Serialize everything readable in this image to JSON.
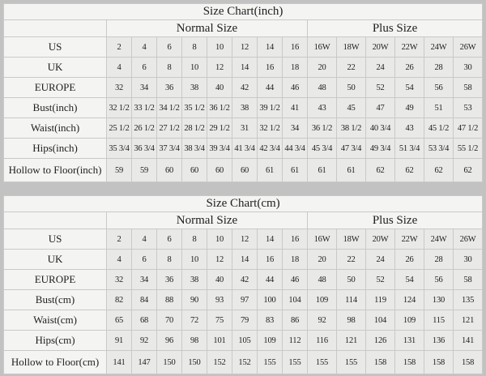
{
  "colors": {
    "page_background": "#c2c2c2",
    "table_background": "#f4f4f3",
    "data_cell_background": "#e9e9e8",
    "border": "#c9c9c8",
    "text": "#1e1e1e"
  },
  "chart_data": [
    {
      "type": "table",
      "title": "Size Chart(inch)",
      "column_groups": [
        {
          "label": "Normal Size",
          "span": 8
        },
        {
          "label": "Plus Size",
          "span": 6
        }
      ],
      "rows": [
        {
          "label": "US",
          "values": [
            "2",
            "4",
            "6",
            "8",
            "10",
            "12",
            "14",
            "16",
            "16W",
            "18W",
            "20W",
            "22W",
            "24W",
            "26W"
          ]
        },
        {
          "label": "UK",
          "values": [
            "4",
            "6",
            "8",
            "10",
            "12",
            "14",
            "16",
            "18",
            "20",
            "22",
            "24",
            "26",
            "28",
            "30"
          ]
        },
        {
          "label": "EUROPE",
          "values": [
            "32",
            "34",
            "36",
            "38",
            "40",
            "42",
            "44",
            "46",
            "48",
            "50",
            "52",
            "54",
            "56",
            "58"
          ]
        },
        {
          "label": "Bust(inch)",
          "values": [
            "32 1/2",
            "33 1/2",
            "34 1/2",
            "35 1/2",
            "36 1/2",
            "38",
            "39 1/2",
            "41",
            "43",
            "45",
            "47",
            "49",
            "51",
            "53"
          ]
        },
        {
          "label": "Waist(inch)",
          "values": [
            "25 1/2",
            "26 1/2",
            "27 1/2",
            "28 1/2",
            "29 1/2",
            "31",
            "32 1/2",
            "34",
            "36 1/2",
            "38 1/2",
            "40 3/4",
            "43",
            "45 1/2",
            "47 1/2"
          ]
        },
        {
          "label": "Hips(inch)",
          "values": [
            "35 3/4",
            "36 3/4",
            "37 3/4",
            "38 3/4",
            "39 3/4",
            "41 3/4",
            "42 3/4",
            "44 3/4",
            "45 3/4",
            "47 3/4",
            "49 3/4",
            "51 3/4",
            "53 3/4",
            "55 1/2"
          ]
        },
        {
          "label": "Hollow to Floor(inch)",
          "values": [
            "59",
            "59",
            "60",
            "60",
            "60",
            "60",
            "61",
            "61",
            "61",
            "61",
            "62",
            "62",
            "62",
            "62"
          ]
        }
      ]
    },
    {
      "type": "table",
      "title": "Size Chart(cm)",
      "column_groups": [
        {
          "label": "Normal Size",
          "span": 8
        },
        {
          "label": "Plus Size",
          "span": 6
        }
      ],
      "rows": [
        {
          "label": "US",
          "values": [
            "2",
            "4",
            "6",
            "8",
            "10",
            "12",
            "14",
            "16",
            "16W",
            "18W",
            "20W",
            "22W",
            "24W",
            "26W"
          ]
        },
        {
          "label": "UK",
          "values": [
            "4",
            "6",
            "8",
            "10",
            "12",
            "14",
            "16",
            "18",
            "20",
            "22",
            "24",
            "26",
            "28",
            "30"
          ]
        },
        {
          "label": "EUROPE",
          "values": [
            "32",
            "34",
            "36",
            "38",
            "40",
            "42",
            "44",
            "46",
            "48",
            "50",
            "52",
            "54",
            "56",
            "58"
          ]
        },
        {
          "label": "Bust(cm)",
          "values": [
            "82",
            "84",
            "88",
            "90",
            "93",
            "97",
            "100",
            "104",
            "109",
            "114",
            "119",
            "124",
            "130",
            "135"
          ]
        },
        {
          "label": "Waist(cm)",
          "values": [
            "65",
            "68",
            "70",
            "72",
            "75",
            "79",
            "83",
            "86",
            "92",
            "98",
            "104",
            "109",
            "115",
            "121"
          ]
        },
        {
          "label": "Hips(cm)",
          "values": [
            "91",
            "92",
            "96",
            "98",
            "101",
            "105",
            "109",
            "112",
            "116",
            "121",
            "126",
            "131",
            "136",
            "141"
          ]
        },
        {
          "label": "Hollow to Floor(cm)",
          "values": [
            "141",
            "147",
            "150",
            "150",
            "152",
            "152",
            "155",
            "155",
            "155",
            "155",
            "158",
            "158",
            "158",
            "158"
          ]
        }
      ]
    }
  ],
  "layout": {
    "label_col_width": 127,
    "normal_col_width": 31,
    "plus_col_width": 36
  }
}
